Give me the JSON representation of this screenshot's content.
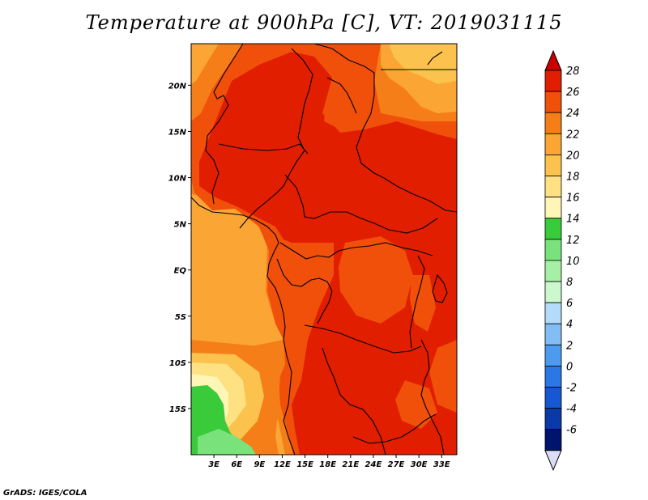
{
  "title": "Temperature at 900hPa [C], VT: 2019031115",
  "credit": "GrADS: IGES/COLA",
  "map": {
    "region": "Central Africa",
    "lon_range": [
      0,
      35
    ],
    "lat_range": [
      -20,
      24.5
    ],
    "lon_ticks": [
      "3E",
      "6E",
      "9E",
      "12E",
      "15E",
      "18E",
      "21E",
      "24E",
      "27E",
      "30E",
      "33E"
    ],
    "lon_values": [
      3,
      6,
      9,
      12,
      15,
      18,
      21,
      24,
      27,
      30,
      33
    ],
    "lat_ticks": [
      "20N",
      "15N",
      "10N",
      "5N",
      "EQ",
      "5S",
      "10S",
      "15S"
    ],
    "lat_values": [
      20,
      15,
      10,
      5,
      0,
      -5,
      -10,
      -15
    ],
    "colors": {
      "t26": "#e11e00",
      "t24": "#f0500a",
      "t22": "#f57e18",
      "t20": "#fba534",
      "t18": "#fcc24e",
      "t16": "#fde183",
      "t14": "#fff5b6",
      "t12": "#3acb3a",
      "t10": "#7ae27a",
      "border": "#000000"
    }
  },
  "colorbar": {
    "labels": [
      "28",
      "26",
      "24",
      "22",
      "20",
      "18",
      "16",
      "14",
      "12",
      "10",
      "8",
      "6",
      "4",
      "2",
      "0",
      "-2",
      "-4",
      "-6"
    ],
    "colors": [
      "#c80000",
      "#e11e00",
      "#f0500a",
      "#f57e18",
      "#fba534",
      "#fcc24e",
      "#fde183",
      "#fff5b6",
      "#3acb3a",
      "#7ae27a",
      "#a6f0a6",
      "#cdf7cd",
      "#b4dcfa",
      "#82bef5",
      "#4c9bef",
      "#2a78e6",
      "#1558d2",
      "#0a3aa8",
      "#00146e",
      "#dcdcf5"
    ]
  }
}
